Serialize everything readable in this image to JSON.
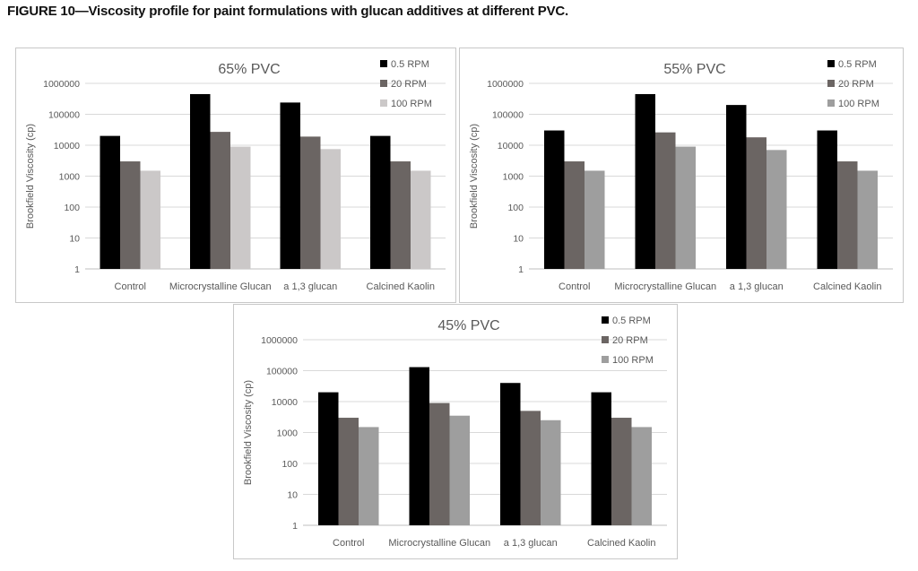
{
  "figure_title": "FIGURE 10—Viscosity profile for paint formulations with glucan additives at different PVC.",
  "chart_data": [
    {
      "type": "bar",
      "title": "65% PVC",
      "ylabel": "Brookfield Viscosity (cp)",
      "xlabel": "",
      "yscale": "log",
      "ylim": [
        1,
        1000000
      ],
      "yticks": [
        "1",
        "10",
        "100",
        "1000",
        "10000",
        "100000",
        "1000000"
      ],
      "categories": [
        "Control",
        "Microcrystalline Glucan",
        "a 1,3 glucan",
        "Calcined Kaolin"
      ],
      "legend_position": "top-right",
      "grid": true,
      "series": [
        {
          "name": "0.5 RPM",
          "color": "#000000",
          "values": [
            20000,
            450000,
            240000,
            20000
          ]
        },
        {
          "name": "20 RPM",
          "color": "#6b6563",
          "values": [
            3000,
            27000,
            19000,
            3000
          ]
        },
        {
          "name": "100 RPM",
          "color": "#cbc8c8",
          "values": [
            1500,
            9000,
            7500,
            1500
          ]
        }
      ]
    },
    {
      "type": "bar",
      "title": "55% PVC",
      "ylabel": "Brookfield Viscosity (cp)",
      "xlabel": "",
      "yscale": "log",
      "ylim": [
        1,
        1000000
      ],
      "yticks": [
        "1",
        "10",
        "100",
        "1000",
        "10000",
        "100000",
        "1000000"
      ],
      "categories": [
        "Control",
        "Microcrystalline Glucan",
        "a 1,3 glucan",
        "Calcined Kaolin"
      ],
      "legend_position": "top-right",
      "grid": true,
      "series": [
        {
          "name": "0.5 RPM",
          "color": "#000000",
          "values": [
            30000,
            450000,
            200000,
            30000
          ]
        },
        {
          "name": "20 RPM",
          "color": "#6b6563",
          "values": [
            3000,
            26000,
            18000,
            3000
          ]
        },
        {
          "name": "100 RPM",
          "color": "#9e9e9e",
          "values": [
            1500,
            9000,
            7000,
            1500
          ]
        }
      ]
    },
    {
      "type": "bar",
      "title": "45% PVC",
      "ylabel": "Brookfield Viscosity (cp)",
      "xlabel": "",
      "yscale": "log",
      "ylim": [
        1,
        1000000
      ],
      "yticks": [
        "1",
        "10",
        "100",
        "1000",
        "10000",
        "100000",
        "1000000"
      ],
      "categories": [
        "Control",
        "Microcrystalline Glucan",
        "a 1,3 glucan",
        "Calcined Kaolin"
      ],
      "legend_position": "top-right",
      "grid": true,
      "series": [
        {
          "name": "0.5 RPM",
          "color": "#000000",
          "values": [
            20000,
            130000,
            40000,
            20000
          ]
        },
        {
          "name": "20 RPM",
          "color": "#6b6563",
          "values": [
            3000,
            9000,
            5000,
            3000
          ]
        },
        {
          "name": "100 RPM",
          "color": "#9e9e9e",
          "values": [
            1500,
            3500,
            2500,
            1500
          ]
        }
      ]
    }
  ]
}
